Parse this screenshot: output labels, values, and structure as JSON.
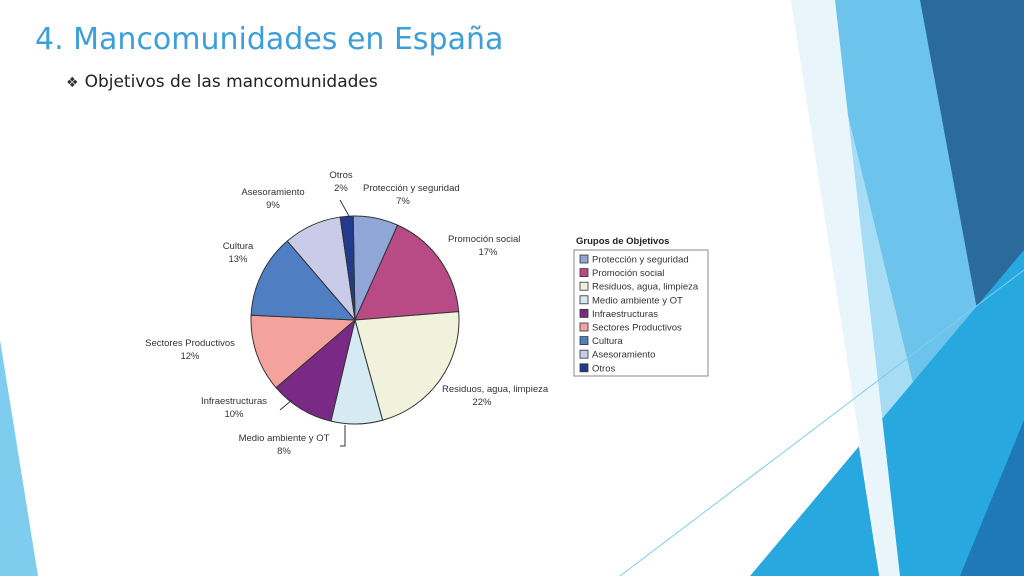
{
  "slide": {
    "title": "4. Mancomunidades en España",
    "bullet_symbol": "❖",
    "bullet_text": "Objetivos de las mancomunidades"
  },
  "chart_data": {
    "type": "pie",
    "legend_title": "Grupos de Objetivos",
    "legend_position": "right",
    "slices": [
      {
        "label": "Protección y seguridad",
        "value": 7,
        "pct_label": "7%",
        "color": "#8fa6d6"
      },
      {
        "label": "Promoción social",
        "value": 17,
        "pct_label": "17%",
        "color": "#b84a86"
      },
      {
        "label": "Residuos, agua, limpieza",
        "value": 22,
        "pct_label": "22%",
        "color": "#f1f2dc"
      },
      {
        "label": "Medio ambiente y OT",
        "value": 8,
        "pct_label": "8%",
        "color": "#d5eaf2"
      },
      {
        "label": "Infraestructuras",
        "value": 10,
        "pct_label": "10%",
        "color": "#7a2a86"
      },
      {
        "label": "Sectores Productivos",
        "value": 12,
        "pct_label": "12%",
        "color": "#f4a29c"
      },
      {
        "label": "Cultura",
        "value": 13,
        "pct_label": "13%",
        "color": "#4f7fc2"
      },
      {
        "label": "Asesoramiento",
        "value": 9,
        "pct_label": "9%",
        "color": "#c9cbe8"
      },
      {
        "label": "Otros",
        "value": 2,
        "pct_label": "2%",
        "color": "#223a8c"
      }
    ]
  },
  "theme": {
    "title_color": "#3d9fd8",
    "deco_colors": [
      "#27a0d8",
      "#6cc3ec",
      "#a6dcf4",
      "#2a6b9c",
      "#1f78b8"
    ]
  }
}
